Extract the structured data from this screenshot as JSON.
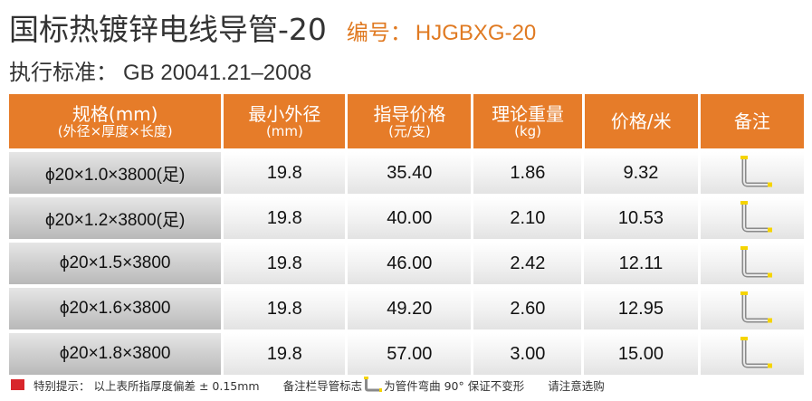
{
  "title": "国标热镀锌电线导管-20",
  "code": {
    "label": "编号：",
    "value": "HJGBXG-20"
  },
  "standard": {
    "label": "执行标准：",
    "value": "GB 20041.21–2008"
  },
  "columns": [
    {
      "line1": "规格(mm)",
      "line2": "(外径×厚度×长度)"
    },
    {
      "line1": "最小外径",
      "line2": "(mm)"
    },
    {
      "line1": "指导价格",
      "line2": "(元/支)"
    },
    {
      "line1": "理论重量",
      "line2": "(kg)"
    },
    {
      "line1": "价格/米",
      "line2": ""
    },
    {
      "line1": "备注",
      "line2": ""
    }
  ],
  "rows": [
    {
      "spec": "ϕ20×1.0×3800(足)",
      "min_od": "19.8",
      "price": "35.40",
      "weight": "1.86",
      "per_meter": "9.32",
      "note_icon": "bent-conduit-icon"
    },
    {
      "spec": "ϕ20×1.2×3800(足)",
      "min_od": "19.8",
      "price": "40.00",
      "weight": "2.10",
      "per_meter": "10.53",
      "note_icon": "bent-conduit-icon"
    },
    {
      "spec": "ϕ20×1.5×3800",
      "min_od": "19.8",
      "price": "46.00",
      "weight": "2.42",
      "per_meter": "12.11",
      "note_icon": "bent-conduit-icon"
    },
    {
      "spec": "ϕ20×1.6×3800",
      "min_od": "19.8",
      "price": "49.20",
      "weight": "2.60",
      "per_meter": "12.95",
      "note_icon": "bent-conduit-icon"
    },
    {
      "spec": "ϕ20×1.8×3800",
      "min_od": "19.8",
      "price": "57.00",
      "weight": "3.00",
      "per_meter": "15.00",
      "note_icon": "bent-conduit-icon"
    }
  ],
  "footer": {
    "tip": "特别提示： 以上表所指厚度偏差 ± 0.15mm",
    "note_prefix": "备注栏导管标志",
    "note_suffix": "为管件弯曲 90° 保证不变形",
    "advice": "请注意选购"
  },
  "colors": {
    "header_orange": "#e67c29",
    "title_orange": "#e07a22",
    "marker_red": "#d8262b",
    "pipe_yellow": "#f5d400"
  }
}
